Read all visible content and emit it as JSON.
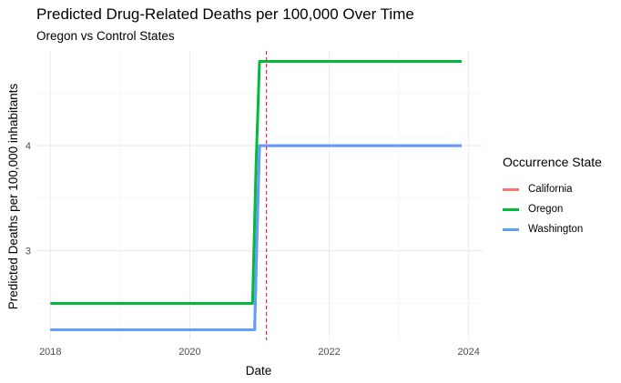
{
  "chart_data": {
    "type": "line",
    "title": "Predicted Drug-Related Deaths per 100,000 Over Time",
    "subtitle": "Oregon vs Control States",
    "xlabel": "Date",
    "ylabel": "Predicted Deaths per 100,000 inhabitants",
    "xlim": [
      2017.8,
      2024.2
    ],
    "ylim": [
      2.15,
      4.9
    ],
    "x_ticks": [
      2018,
      2020,
      2022,
      2024
    ],
    "x_tick_labels": [
      "2018",
      "2020",
      "2022",
      "2024"
    ],
    "y_ticks": [
      3,
      4
    ],
    "y_tick_labels": [
      "3",
      "4"
    ],
    "grid": true,
    "legend_title": "Occurrence State",
    "legend_position": "right",
    "vline": {
      "x": 2021.1,
      "color": "#cb181d",
      "style": "dashed"
    },
    "series": [
      {
        "name": "California",
        "color": "#F8766D",
        "x": [
          2018.0,
          2020.93,
          2020.97,
          2021.0,
          2023.9
        ],
        "y": [
          2.25,
          2.25,
          3.3,
          4.0,
          4.0
        ]
      },
      {
        "name": "Oregon",
        "color": "#00BA38",
        "x": [
          2018.0,
          2020.9,
          2020.95,
          2021.0,
          2023.9
        ],
        "y": [
          2.5,
          2.5,
          3.8,
          4.8,
          4.8
        ]
      },
      {
        "name": "Washington",
        "color": "#619CFF",
        "x": [
          2018.0,
          2020.93,
          2020.97,
          2021.0,
          2023.9
        ],
        "y": [
          2.25,
          2.25,
          3.3,
          4.0,
          4.0
        ]
      }
    ]
  }
}
